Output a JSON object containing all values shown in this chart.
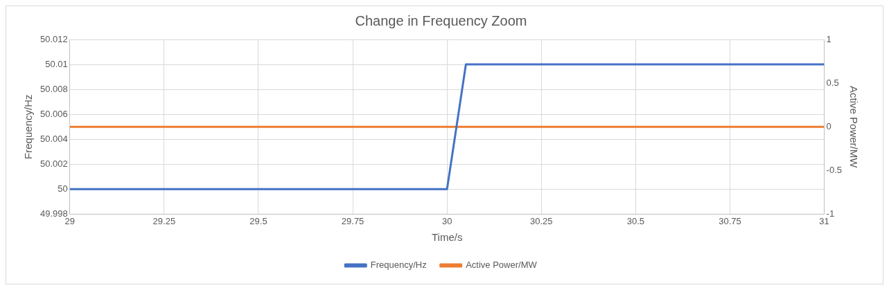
{
  "chart_data": {
    "type": "line",
    "title": "Change in Frequency Zoom",
    "xlabel": "Time/s",
    "ylabel": "Frequency/Hz",
    "y2label": "Active Power/MW",
    "series": [
      {
        "name": "Frequency/Hz",
        "color": "#4472c4",
        "x": [
          29,
          30,
          30.05,
          31
        ],
        "values": [
          50,
          50,
          50.01,
          50.01
        ]
      },
      {
        "name": "Active Power/MW",
        "color": "#ed7d31",
        "axis": "y2",
        "x": [
          29,
          31
        ],
        "values": [
          0,
          0
        ]
      }
    ],
    "xlim": [
      29,
      31
    ],
    "xticks": [
      29,
      29.25,
      29.5,
      29.75,
      30,
      30.25,
      30.5,
      30.75,
      31
    ],
    "ylim": [
      49.998,
      50.012
    ],
    "yticks": [
      49.998,
      50,
      50.002,
      50.004,
      50.006,
      50.008,
      50.01,
      50.012
    ],
    "y2lim": [
      -1,
      1
    ],
    "y2ticks": [
      -1,
      -0.5,
      0,
      0.5,
      1
    ],
    "grid": true,
    "legend": "bottom",
    "marker": "none",
    "line_style": "solid"
  }
}
